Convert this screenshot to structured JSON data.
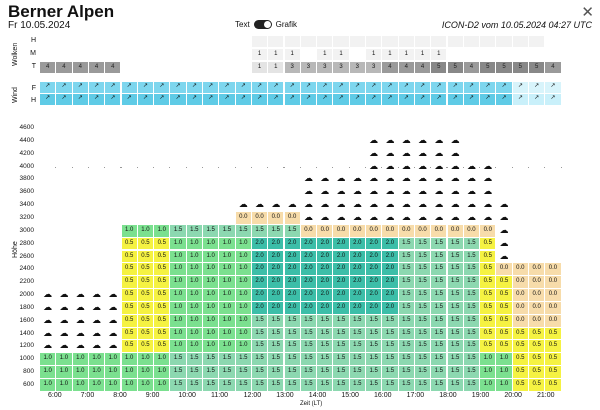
{
  "header": {
    "title": "Berner Alpen",
    "date": "Fr 10.05.2024",
    "toggle_text": "Text",
    "toggle_graph": "Grafik",
    "model_info": "ICON-D2 vom 10.05.2024 04:27 UTC",
    "close_icon": "close-icon"
  },
  "clouds_section": {
    "label": "Wolken",
    "rows": [
      "H",
      "M",
      "T"
    ],
    "M_values": [
      "",
      "",
      "",
      "",
      "",
      "",
      "",
      "",
      "",
      "",
      "",
      "",
      "",
      "1",
      "1",
      "1",
      "",
      "1",
      "1",
      "",
      "1",
      "1",
      "1",
      "1",
      "1",
      "",
      "",
      "",
      "",
      "",
      "",
      ""
    ],
    "T_values": [
      "4",
      "4",
      "4",
      "4",
      "4",
      "",
      "",
      "",
      "",
      "",
      "",
      "",
      "",
      "1",
      "1",
      "3",
      "3",
      "3",
      "3",
      "3",
      "3",
      "4",
      "4",
      "4",
      "5",
      "5",
      "4",
      "5",
      "5",
      "5",
      "5",
      "4"
    ]
  },
  "wind_section": {
    "label": "Wind",
    "rows": [
      "F",
      "H"
    ]
  },
  "chart": {
    "y_axis_label": "Höhe",
    "x_axis_label": "Zeit (LT)",
    "y_ticks": [
      "4600",
      "4400",
      "4200",
      "4000",
      "3800",
      "3600",
      "3400",
      "3200",
      "3000",
      "2800",
      "2600",
      "2400",
      "2200",
      "2000",
      "1800",
      "1600",
      "1400",
      "1200",
      "1000",
      "800",
      "600"
    ],
    "x_ticks": [
      "6:00",
      "7:00",
      "8:00",
      "9:00",
      "10:00",
      "11:00",
      "12:00",
      "13:00",
      "14:00",
      "15:00",
      "16:00",
      "17:00",
      "18:00",
      "19:00",
      "20:00",
      "21:00"
    ]
  },
  "chart_data": {
    "type": "heatmap",
    "title": "",
    "xlabel": "Zeit (LT)",
    "ylabel": "Höhe",
    "columns": 32,
    "rows": 21,
    "legend_colors": {
      "0.0": "#f7dcaa",
      "0.5": "#f5f242",
      "1.0": "#7be08f",
      "1.5": "#8cd8b0",
      "2.0": "#3cbea8",
      "cloud": "#ffffff",
      "empty": "#ffffff"
    }
  }
}
